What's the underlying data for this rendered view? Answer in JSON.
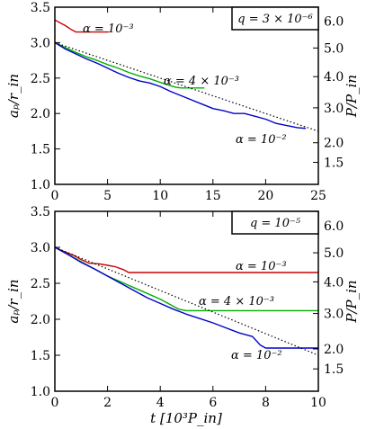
{
  "chart_data": [
    {
      "type": "line",
      "box_label": "q = 3 × 10⁻⁶",
      "ylabel": "aₚ/r_in",
      "ylabel_right": "P/P_in",
      "xlabel": "",
      "xlim": [
        0,
        25
      ],
      "ylim": [
        1.0,
        3.5
      ],
      "x_ticks": [
        "0",
        "5",
        "10",
        "15",
        "20",
        "25"
      ],
      "y_ticks": [
        "1.0",
        "1.5",
        "2.0",
        "2.5",
        "3.0",
        "3.5"
      ],
      "right_ticks": [
        "1.5",
        "2.0",
        "3.0",
        "4.0",
        "5.0",
        "6.0"
      ],
      "right_tick_values": [
        1.5,
        2.0,
        3.0,
        4.0,
        5.0,
        6.0
      ],
      "series": [
        {
          "color": "#cc0000",
          "label": "α = 10⁻³",
          "x": [
            0,
            0.5,
            1,
            1.5,
            2,
            3,
            4,
            5.1
          ],
          "y": [
            3.32,
            3.28,
            3.24,
            3.19,
            3.15,
            3.15,
            3.15,
            3.15
          ]
        },
        {
          "color": "#00b000",
          "label": "α = 4 × 10⁻³",
          "x": [
            0,
            1,
            2,
            3,
            4,
            5,
            6,
            7,
            8,
            9,
            10,
            11,
            11.5,
            12,
            13,
            14.2
          ],
          "y": [
            3.0,
            2.93,
            2.86,
            2.8,
            2.75,
            2.69,
            2.64,
            2.58,
            2.53,
            2.49,
            2.44,
            2.39,
            2.37,
            2.36,
            2.36,
            2.36
          ]
        },
        {
          "color": "#0000cc",
          "label": "α = 10⁻²",
          "x": [
            0,
            1,
            2,
            3,
            4,
            5,
            6,
            7,
            8,
            9,
            10,
            11,
            12,
            13,
            14,
            15,
            16,
            17,
            18,
            19,
            20,
            21,
            22,
            23,
            23.8
          ],
          "y": [
            3.0,
            2.91,
            2.84,
            2.77,
            2.71,
            2.64,
            2.57,
            2.51,
            2.46,
            2.43,
            2.38,
            2.31,
            2.25,
            2.19,
            2.13,
            2.07,
            2.04,
            2.0,
            2.0,
            1.96,
            1.92,
            1.86,
            1.83,
            1.8,
            1.79
          ]
        },
        {
          "color": "#000000",
          "style": "dotted",
          "x": [
            0,
            5,
            10,
            15,
            20,
            25
          ],
          "y": [
            3.0,
            2.75,
            2.5,
            2.25,
            2.0,
            1.75
          ]
        }
      ]
    },
    {
      "type": "line",
      "box_label": "q = 10⁻⁵",
      "ylabel": "aₚ/r_in",
      "ylabel_right": "P/P_in",
      "xlabel": "t [10³P_in]",
      "xlim": [
        0,
        10
      ],
      "ylim": [
        1.0,
        3.5
      ],
      "x_ticks": [
        "0",
        "2",
        "4",
        "6",
        "8",
        "10"
      ],
      "y_ticks": [
        "1.0",
        "1.5",
        "2.0",
        "2.5",
        "3.0",
        "3.5"
      ],
      "right_ticks": [
        "1.5",
        "2.0",
        "3.0",
        "4.0",
        "5.0",
        "6.0"
      ],
      "right_tick_values": [
        1.5,
        2.0,
        3.0,
        4.0,
        5.0,
        6.0
      ],
      "series": [
        {
          "color": "#cc0000",
          "label": "α = 10⁻³",
          "x": [
            0,
            0.3,
            0.7,
            1.0,
            1.3,
            1.7,
            2.0,
            2.3,
            2.6,
            2.8,
            4,
            6,
            8,
            10
          ],
          "y": [
            3.0,
            2.95,
            2.89,
            2.83,
            2.78,
            2.77,
            2.75,
            2.73,
            2.69,
            2.65,
            2.65,
            2.65,
            2.65,
            2.65
          ]
        },
        {
          "color": "#00b000",
          "label": "α = 4 × 10⁻³",
          "x": [
            0,
            0.5,
            1,
            1.5,
            2,
            2.5,
            3,
            3.5,
            4,
            4.4,
            4.7,
            5,
            6,
            8,
            10
          ],
          "y": [
            3.0,
            2.9,
            2.8,
            2.7,
            2.6,
            2.52,
            2.44,
            2.36,
            2.28,
            2.2,
            2.14,
            2.12,
            2.12,
            2.12,
            2.12
          ]
        },
        {
          "color": "#0000cc",
          "label": "α = 10⁻²",
          "x": [
            0,
            0.5,
            1,
            1.5,
            2,
            2.5,
            3,
            3.5,
            4,
            4.5,
            5,
            5.5,
            6,
            6.5,
            7,
            7.5,
            7.8,
            8,
            9,
            10
          ],
          "y": [
            3.0,
            2.9,
            2.79,
            2.7,
            2.6,
            2.5,
            2.4,
            2.3,
            2.22,
            2.14,
            2.07,
            2.01,
            1.95,
            1.88,
            1.81,
            1.76,
            1.64,
            1.6,
            1.6,
            1.6
          ]
        },
        {
          "color": "#000000",
          "style": "dotted",
          "x": [
            0,
            10
          ],
          "y": [
            3.0,
            1.5
          ]
        }
      ]
    }
  ]
}
